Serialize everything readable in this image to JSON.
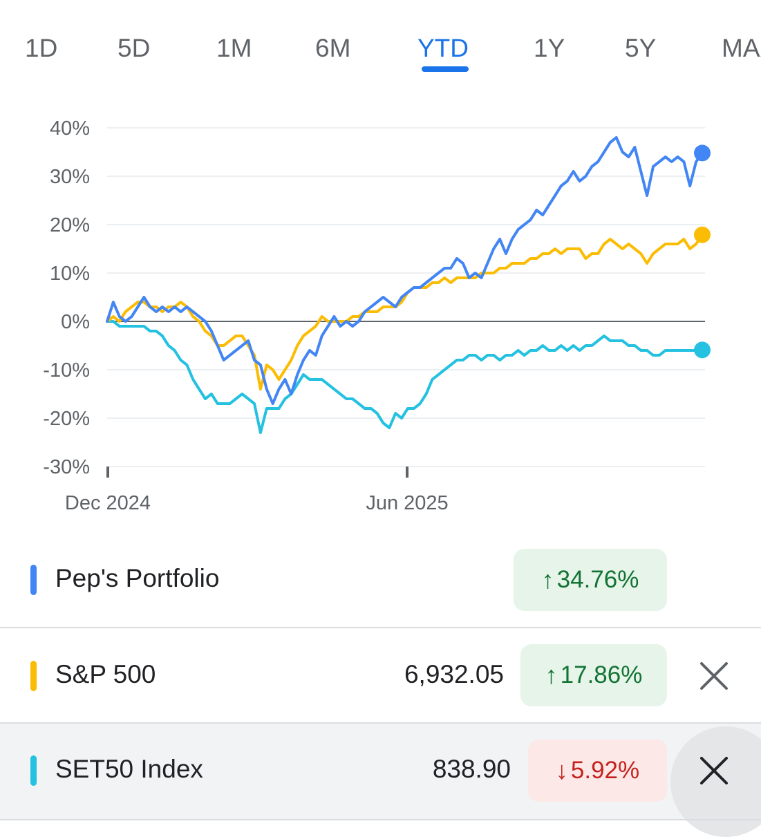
{
  "tabs": [
    {
      "label": "1D"
    },
    {
      "label": "5D"
    },
    {
      "label": "1M"
    },
    {
      "label": "6M"
    },
    {
      "label": "YTD"
    },
    {
      "label": "1Y"
    },
    {
      "label": "5Y"
    },
    {
      "label": "MAX"
    }
  ],
  "active_tab": "YTD",
  "colors": {
    "portfolio": "#4285f4",
    "sp500": "#fbbc04",
    "set50": "#24c1e0",
    "zero_line": "#5f6368",
    "grid": "#eceff1"
  },
  "legend": [
    {
      "name": "Pep's Portfolio",
      "price": "",
      "change": "34.76%",
      "direction": "up",
      "arrow": "↑",
      "removable": false
    },
    {
      "name": "S&P 500",
      "price": "6,932.05",
      "change": "17.86%",
      "direction": "up",
      "arrow": "↑",
      "removable": true
    },
    {
      "name": "SET50 Index",
      "price": "838.90",
      "change": "5.92%",
      "direction": "down",
      "arrow": "↓",
      "removable": true
    }
  ],
  "chart_data": {
    "type": "line",
    "title": "",
    "xlabel": "",
    "ylabel": "",
    "ylim": [
      -30,
      40
    ],
    "y_ticks": [
      40,
      30,
      20,
      10,
      0,
      -10,
      -20,
      -30
    ],
    "y_tick_labels": [
      "40%",
      "30%",
      "20%",
      "10%",
      "0%",
      "-10%",
      "-20%",
      "-30%"
    ],
    "x_range": [
      0,
      100
    ],
    "x_ticks": [
      {
        "x": 0,
        "label": "Dec 2024"
      },
      {
        "x": 50,
        "label": "Jun 2025"
      }
    ],
    "series": [
      {
        "name": "Pep's Portfolio",
        "key": "portfolio",
        "points": [
          [
            0,
            0
          ],
          [
            1,
            4
          ],
          [
            2,
            1
          ],
          [
            3,
            0
          ],
          [
            4,
            1
          ],
          [
            5,
            3
          ],
          [
            6,
            5
          ],
          [
            7,
            3
          ],
          [
            8,
            2
          ],
          [
            9,
            3
          ],
          [
            10,
            2
          ],
          [
            11,
            3
          ],
          [
            12,
            2
          ],
          [
            13,
            3
          ],
          [
            14,
            2
          ],
          [
            15,
            1
          ],
          [
            16,
            0
          ],
          [
            17,
            -2
          ],
          [
            18,
            -5
          ],
          [
            19,
            -8
          ],
          [
            20,
            -7
          ],
          [
            21,
            -6
          ],
          [
            22,
            -5
          ],
          [
            23,
            -4
          ],
          [
            24,
            -8
          ],
          [
            25,
            -9
          ],
          [
            26,
            -14
          ],
          [
            27,
            -17
          ],
          [
            28,
            -14
          ],
          [
            29,
            -12
          ],
          [
            30,
            -15
          ],
          [
            31,
            -11
          ],
          [
            32,
            -8
          ],
          [
            33,
            -6
          ],
          [
            34,
            -7
          ],
          [
            35,
            -3
          ],
          [
            36,
            -1
          ],
          [
            37,
            1
          ],
          [
            38,
            -1
          ],
          [
            39,
            0
          ],
          [
            40,
            -1
          ],
          [
            41,
            0
          ],
          [
            42,
            2
          ],
          [
            43,
            3
          ],
          [
            44,
            4
          ],
          [
            45,
            5
          ],
          [
            46,
            4
          ],
          [
            47,
            3
          ],
          [
            48,
            5
          ],
          [
            49,
            6
          ],
          [
            50,
            7
          ],
          [
            51,
            7
          ],
          [
            52,
            8
          ],
          [
            53,
            9
          ],
          [
            54,
            10
          ],
          [
            55,
            11
          ],
          [
            56,
            11
          ],
          [
            57,
            13
          ],
          [
            58,
            12
          ],
          [
            59,
            9
          ],
          [
            60,
            10
          ],
          [
            61,
            9
          ],
          [
            62,
            12
          ],
          [
            63,
            15
          ],
          [
            64,
            17
          ],
          [
            65,
            14
          ],
          [
            66,
            17
          ],
          [
            67,
            19
          ],
          [
            68,
            20
          ],
          [
            69,
            21
          ],
          [
            70,
            23
          ],
          [
            71,
            22
          ],
          [
            72,
            24
          ],
          [
            73,
            26
          ],
          [
            74,
            28
          ],
          [
            75,
            29
          ],
          [
            76,
            31
          ],
          [
            77,
            29
          ],
          [
            78,
            30
          ],
          [
            79,
            32
          ],
          [
            80,
            33
          ],
          [
            81,
            35
          ],
          [
            82,
            37
          ],
          [
            83,
            38
          ],
          [
            84,
            35
          ],
          [
            85,
            34
          ],
          [
            86,
            36
          ],
          [
            87,
            31
          ],
          [
            88,
            26
          ],
          [
            89,
            32
          ],
          [
            90,
            33
          ],
          [
            91,
            34
          ],
          [
            92,
            33
          ],
          [
            93,
            34
          ],
          [
            94,
            33
          ],
          [
            95,
            28
          ],
          [
            96,
            33
          ],
          [
            97,
            34.8
          ]
        ],
        "end_value": 34.76
      },
      {
        "name": "S&P 500",
        "key": "sp500",
        "points": [
          [
            0,
            0
          ],
          [
            1,
            1
          ],
          [
            2,
            0
          ],
          [
            3,
            2
          ],
          [
            4,
            3
          ],
          [
            5,
            4
          ],
          [
            6,
            4
          ],
          [
            7,
            3
          ],
          [
            8,
            3
          ],
          [
            9,
            2
          ],
          [
            10,
            3
          ],
          [
            11,
            3
          ],
          [
            12,
            4
          ],
          [
            13,
            3
          ],
          [
            14,
            1
          ],
          [
            15,
            0
          ],
          [
            16,
            -2
          ],
          [
            17,
            -3
          ],
          [
            18,
            -5
          ],
          [
            19,
            -5
          ],
          [
            20,
            -4
          ],
          [
            21,
            -3
          ],
          [
            22,
            -3
          ],
          [
            23,
            -5
          ],
          [
            24,
            -7
          ],
          [
            25,
            -14
          ],
          [
            26,
            -9
          ],
          [
            27,
            -10
          ],
          [
            28,
            -12
          ],
          [
            29,
            -10
          ],
          [
            30,
            -8
          ],
          [
            31,
            -5
          ],
          [
            32,
            -3
          ],
          [
            33,
            -2
          ],
          [
            34,
            -1
          ],
          [
            35,
            1
          ],
          [
            36,
            0
          ],
          [
            37,
            0
          ],
          [
            38,
            0
          ],
          [
            39,
            0
          ],
          [
            40,
            1
          ],
          [
            41,
            1
          ],
          [
            42,
            2
          ],
          [
            43,
            2
          ],
          [
            44,
            2
          ],
          [
            45,
            3
          ],
          [
            46,
            3
          ],
          [
            47,
            3
          ],
          [
            48,
            4
          ],
          [
            49,
            6
          ],
          [
            50,
            7
          ],
          [
            51,
            7
          ],
          [
            52,
            7
          ],
          [
            53,
            8
          ],
          [
            54,
            8
          ],
          [
            55,
            9
          ],
          [
            56,
            8
          ],
          [
            57,
            9
          ],
          [
            58,
            9
          ],
          [
            59,
            9
          ],
          [
            60,
            9
          ],
          [
            61,
            10
          ],
          [
            62,
            10
          ],
          [
            63,
            10
          ],
          [
            64,
            11
          ],
          [
            65,
            11
          ],
          [
            66,
            12
          ],
          [
            67,
            12
          ],
          [
            68,
            12
          ],
          [
            69,
            13
          ],
          [
            70,
            13
          ],
          [
            71,
            14
          ],
          [
            72,
            14
          ],
          [
            73,
            15
          ],
          [
            74,
            14
          ],
          [
            75,
            15
          ],
          [
            76,
            15
          ],
          [
            77,
            15
          ],
          [
            78,
            13
          ],
          [
            79,
            14
          ],
          [
            80,
            14
          ],
          [
            81,
            16
          ],
          [
            82,
            17
          ],
          [
            83,
            16
          ],
          [
            84,
            15
          ],
          [
            85,
            16
          ],
          [
            86,
            15
          ],
          [
            87,
            14
          ],
          [
            88,
            12
          ],
          [
            89,
            14
          ],
          [
            90,
            15
          ],
          [
            91,
            16
          ],
          [
            92,
            16
          ],
          [
            93,
            16
          ],
          [
            94,
            17
          ],
          [
            95,
            15
          ],
          [
            96,
            16
          ],
          [
            97,
            17.9
          ]
        ],
        "end_value": 17.86
      },
      {
        "name": "SET50 Index",
        "key": "set50",
        "points": [
          [
            0,
            0
          ],
          [
            1,
            0
          ],
          [
            2,
            -1
          ],
          [
            3,
            -1
          ],
          [
            4,
            -1
          ],
          [
            5,
            -1
          ],
          [
            6,
            -1
          ],
          [
            7,
            -2
          ],
          [
            8,
            -2
          ],
          [
            9,
            -3
          ],
          [
            10,
            -5
          ],
          [
            11,
            -6
          ],
          [
            12,
            -8
          ],
          [
            13,
            -9
          ],
          [
            14,
            -12
          ],
          [
            15,
            -14
          ],
          [
            16,
            -16
          ],
          [
            17,
            -15
          ],
          [
            18,
            -17
          ],
          [
            19,
            -17
          ],
          [
            20,
            -17
          ],
          [
            21,
            -16
          ],
          [
            22,
            -15
          ],
          [
            23,
            -16
          ],
          [
            24,
            -17
          ],
          [
            25,
            -23
          ],
          [
            26,
            -18
          ],
          [
            27,
            -18
          ],
          [
            28,
            -18
          ],
          [
            29,
            -16
          ],
          [
            30,
            -15
          ],
          [
            31,
            -13
          ],
          [
            32,
            -11
          ],
          [
            33,
            -12
          ],
          [
            34,
            -12
          ],
          [
            35,
            -12
          ],
          [
            36,
            -13
          ],
          [
            37,
            -14
          ],
          [
            38,
            -15
          ],
          [
            39,
            -16
          ],
          [
            40,
            -16
          ],
          [
            41,
            -17
          ],
          [
            42,
            -18
          ],
          [
            43,
            -18
          ],
          [
            44,
            -19
          ],
          [
            45,
            -21
          ],
          [
            46,
            -22
          ],
          [
            47,
            -19
          ],
          [
            48,
            -20
          ],
          [
            49,
            -18
          ],
          [
            50,
            -18
          ],
          [
            51,
            -17
          ],
          [
            52,
            -15
          ],
          [
            53,
            -12
          ],
          [
            54,
            -11
          ],
          [
            55,
            -10
          ],
          [
            56,
            -9
          ],
          [
            57,
            -8
          ],
          [
            58,
            -8
          ],
          [
            59,
            -7
          ],
          [
            60,
            -7
          ],
          [
            61,
            -8
          ],
          [
            62,
            -7
          ],
          [
            63,
            -7
          ],
          [
            64,
            -8
          ],
          [
            65,
            -7
          ],
          [
            66,
            -7
          ],
          [
            67,
            -6
          ],
          [
            68,
            -7
          ],
          [
            69,
            -6
          ],
          [
            70,
            -6
          ],
          [
            71,
            -5
          ],
          [
            72,
            -6
          ],
          [
            73,
            -6
          ],
          [
            74,
            -5
          ],
          [
            75,
            -6
          ],
          [
            76,
            -5
          ],
          [
            77,
            -6
          ],
          [
            78,
            -5
          ],
          [
            79,
            -5
          ],
          [
            80,
            -4
          ],
          [
            81,
            -3
          ],
          [
            82,
            -4
          ],
          [
            83,
            -4
          ],
          [
            84,
            -4
          ],
          [
            85,
            -5
          ],
          [
            86,
            -5
          ],
          [
            87,
            -6
          ],
          [
            88,
            -6
          ],
          [
            89,
            -7
          ],
          [
            90,
            -7
          ],
          [
            91,
            -6
          ],
          [
            92,
            -6
          ],
          [
            93,
            -6
          ],
          [
            94,
            -6
          ],
          [
            95,
            -6
          ],
          [
            96,
            -6
          ],
          [
            97,
            -5.9
          ]
        ],
        "end_value": -5.92
      }
    ]
  }
}
